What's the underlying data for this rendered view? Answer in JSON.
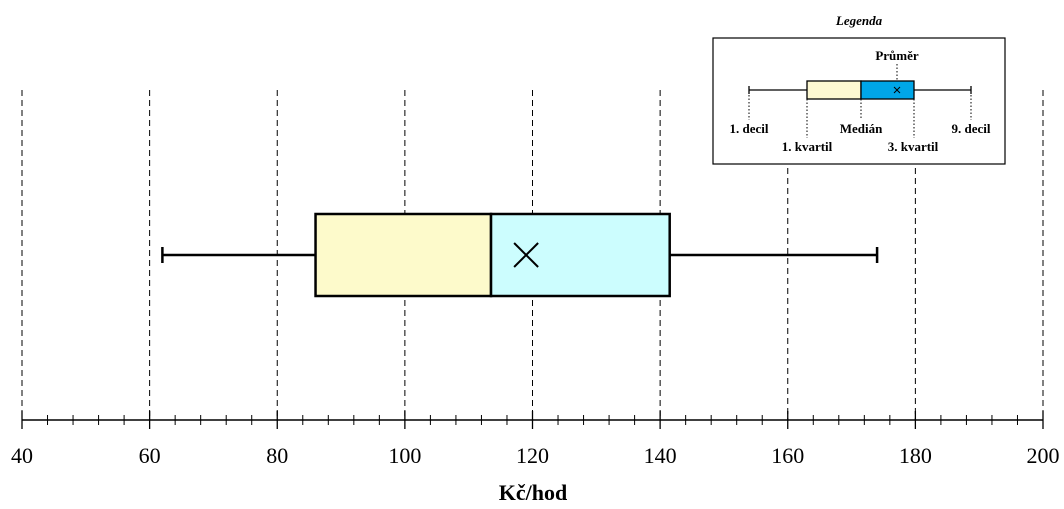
{
  "chart_data": {
    "type": "boxplot",
    "xlabel": "Kč/hod",
    "xlim": [
      40,
      200
    ],
    "major_ticks": [
      40,
      60,
      80,
      100,
      120,
      140,
      160,
      180,
      200
    ],
    "minor_tick_step": 4,
    "grid": "vertical dashed at major ticks",
    "box": {
      "decile_1": 62,
      "quartile_1": 86,
      "median": 113.5,
      "mean": 119,
      "quartile_3": 141.5,
      "decile_9": 174
    },
    "colors": {
      "lower_box": "#fdfacb",
      "upper_box": "#ccfdfe",
      "legend_lower_box": "#fdf8d2",
      "legend_upper_box": "#00a6e8"
    },
    "legend": {
      "title": "Legenda",
      "placement": "top-right",
      "labels": {
        "mean": "Průměr",
        "decile_1": "1. decil",
        "median": "Medián",
        "decile_9": "9. decil",
        "quartile_1": "1. kvartil",
        "quartile_3": "3. kvartil"
      }
    }
  }
}
